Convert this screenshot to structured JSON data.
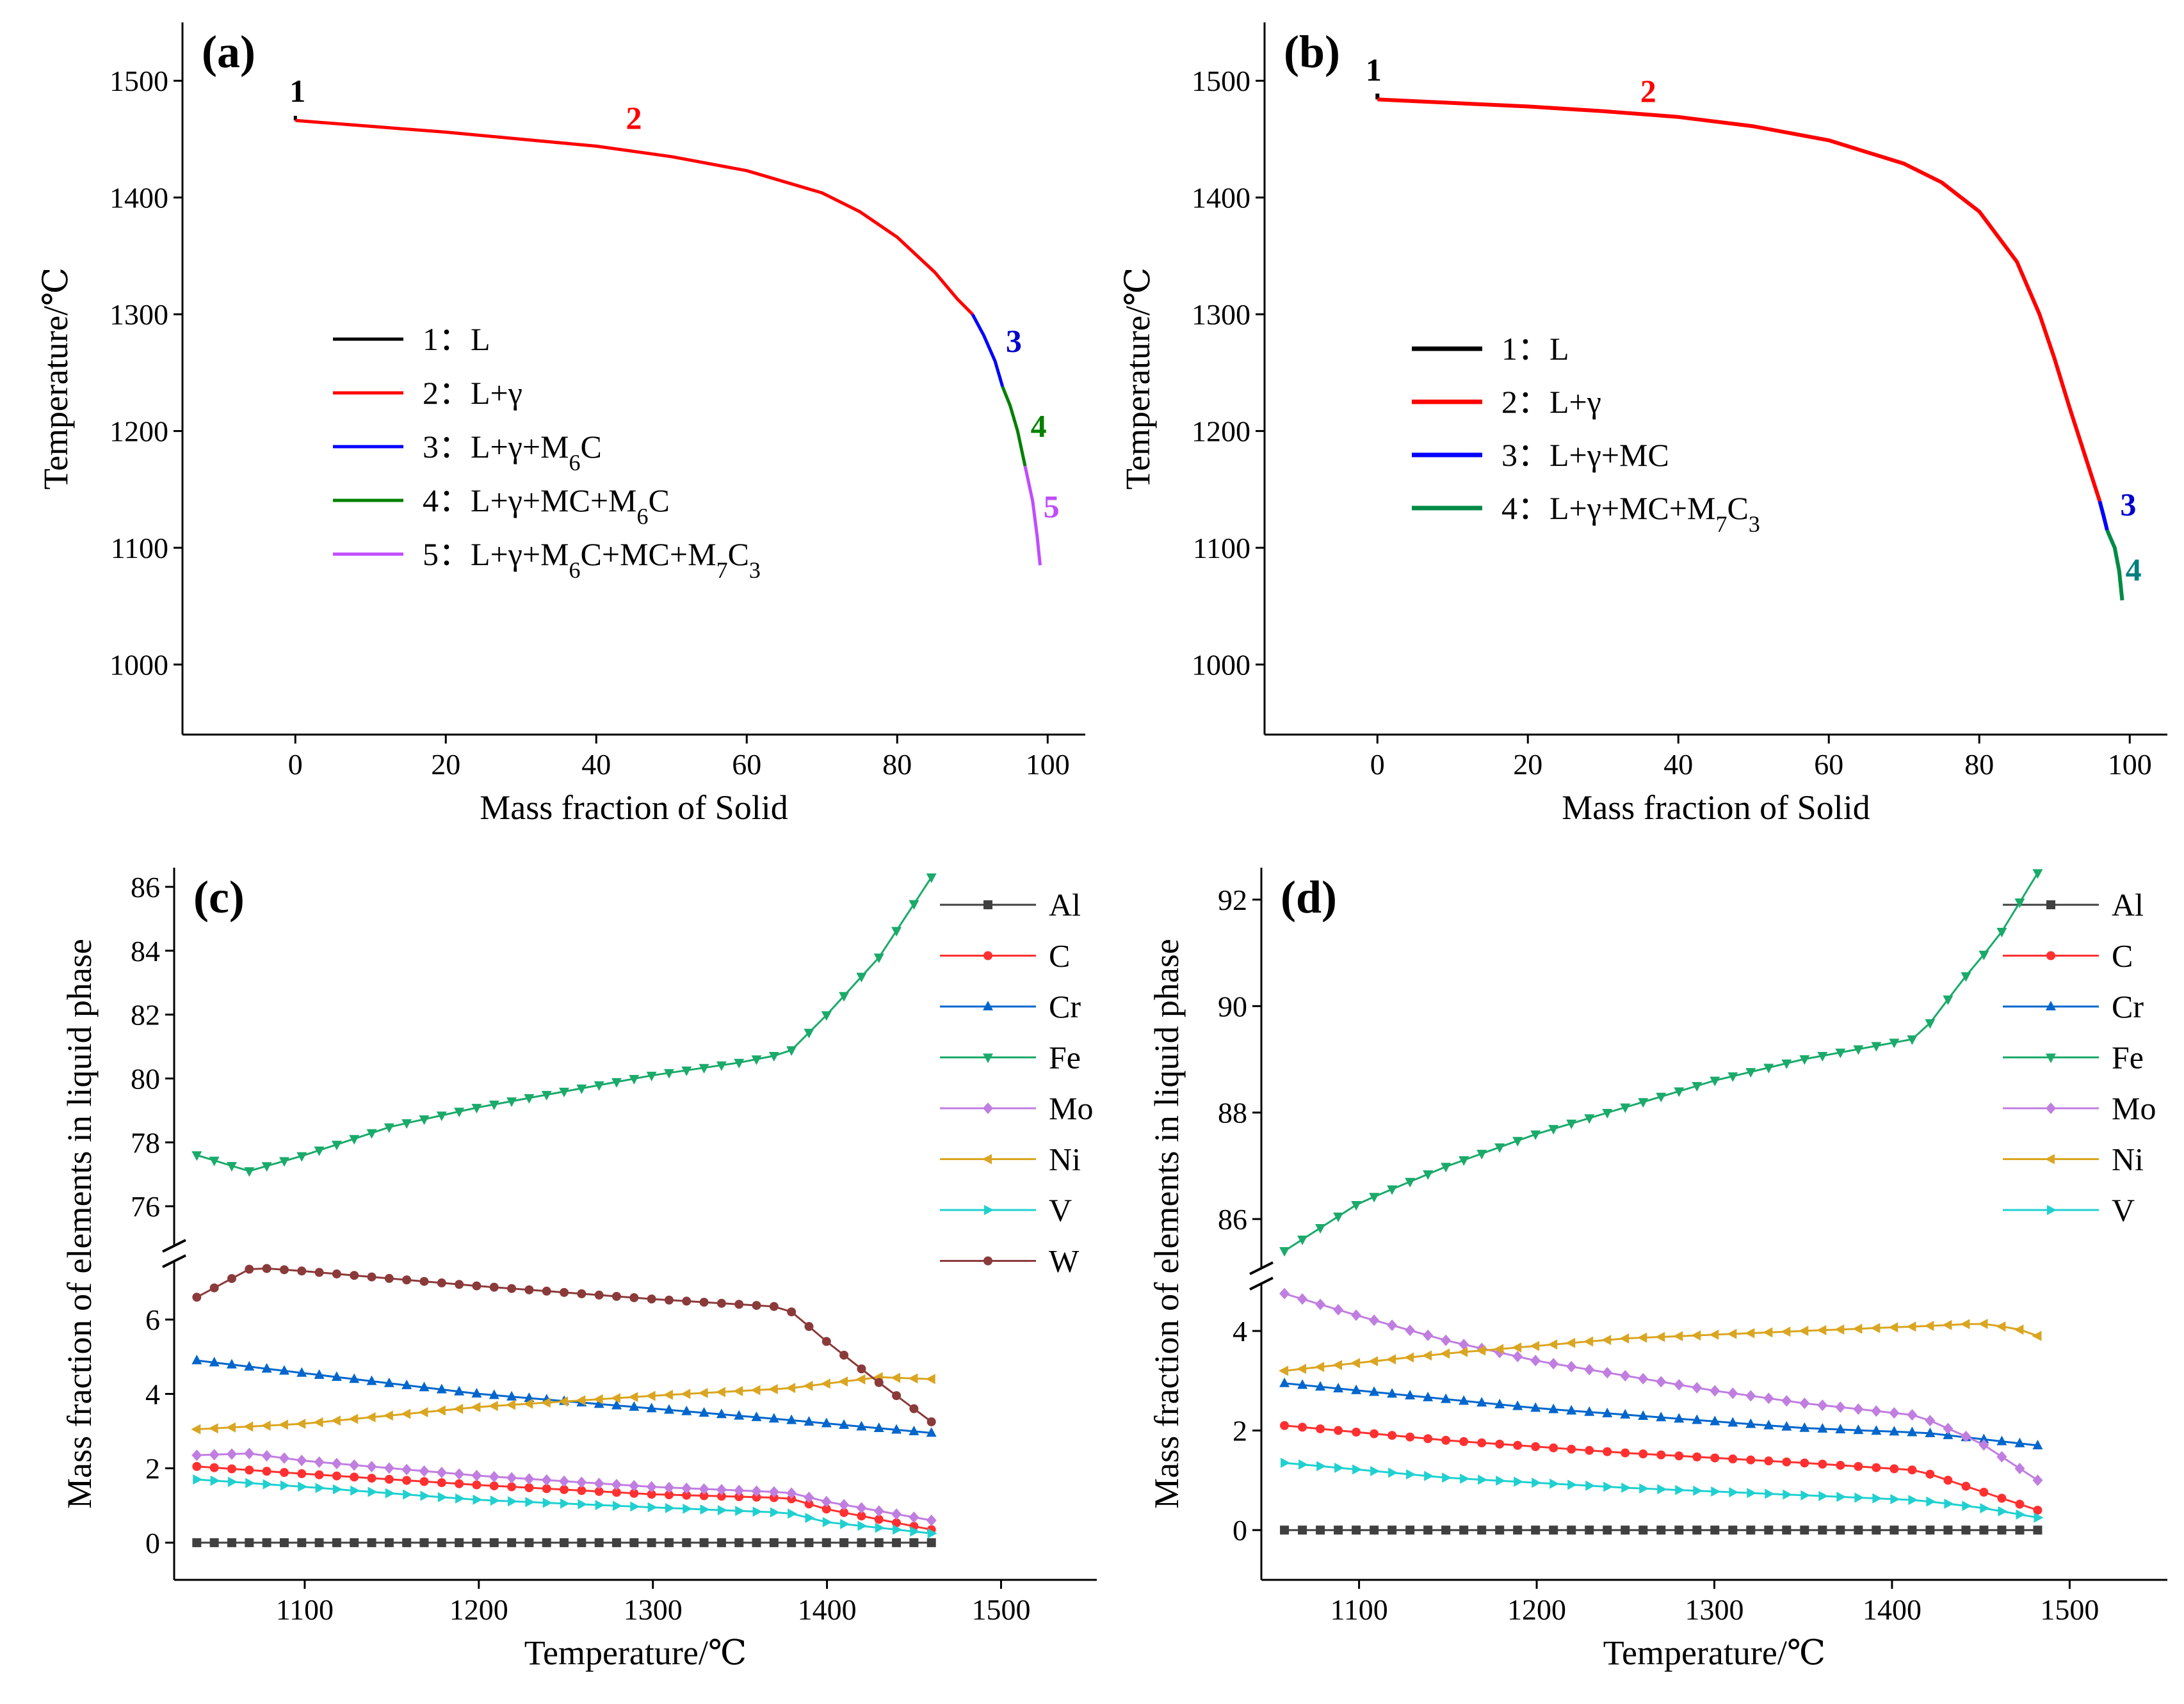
{
  "chart_data": [
    {
      "panel": "(a)",
      "type": "line",
      "xlabel": "Mass fraction of Solid",
      "ylabel": "Temperature/℃",
      "xlim": [
        -15,
        105
      ],
      "ylim": [
        940,
        1550
      ],
      "xticks": [
        0,
        20,
        40,
        60,
        80,
        100
      ],
      "yticks": [
        1000,
        1100,
        1200,
        1300,
        1400,
        1500
      ],
      "legend_position": "center-left",
      "series": [
        {
          "name": "1",
          "legend": "1：L",
          "color": "#000000",
          "points": [
            [
              0,
              1466
            ],
            [
              0,
              1470
            ]
          ]
        },
        {
          "name": "2",
          "legend": "2：L+γ",
          "color": "#ff0000",
          "points": [
            [
              0,
              1466
            ],
            [
              10,
              1461
            ],
            [
              20,
              1456
            ],
            [
              30,
              1450
            ],
            [
              40,
              1444
            ],
            [
              50,
              1435
            ],
            [
              60,
              1423
            ],
            [
              70,
              1404
            ],
            [
              75,
              1388
            ],
            [
              80,
              1366
            ],
            [
              85,
              1336
            ],
            [
              88,
              1313
            ],
            [
              90,
              1300
            ]
          ]
        },
        {
          "name": "3",
          "legend": "3：L+γ+M6C",
          "color": "#0000ff",
          "points": [
            [
              90,
              1300
            ],
            [
              91.5,
              1282
            ],
            [
              93,
              1260
            ],
            [
              94,
              1238
            ]
          ]
        },
        {
          "name": "4",
          "legend": "4：L+γ+MC+M6C",
          "color": "#008000",
          "points": [
            [
              94,
              1238
            ],
            [
              95,
              1222
            ],
            [
              96,
              1200
            ],
            [
              97,
              1170
            ]
          ]
        },
        {
          "name": "5",
          "legend": "5：L+γ+M6C+MC+M7C3",
          "color": "#c04cff",
          "points": [
            [
              97,
              1170
            ],
            [
              98,
              1140
            ],
            [
              98.6,
              1110
            ],
            [
              99,
              1085
            ]
          ]
        }
      ],
      "region_labels": [
        {
          "text": "1",
          "x": 0.3,
          "y": 1482,
          "color": "#000000"
        },
        {
          "text": "2",
          "x": 45,
          "y": 1459,
          "color": "#ff0000"
        },
        {
          "text": "3",
          "x": 95.5,
          "y": 1268,
          "color": "#0000cc"
        },
        {
          "text": "4",
          "x": 98.8,
          "y": 1195,
          "color": "#008000"
        },
        {
          "text": "5",
          "x": 100.5,
          "y": 1126,
          "color": "#c04cff"
        }
      ]
    },
    {
      "panel": "(b)",
      "type": "line",
      "xlabel": "Mass fraction of Solid",
      "ylabel": "Temperature/℃",
      "xlim": [
        -15,
        105
      ],
      "ylim": [
        940,
        1550
      ],
      "xticks": [
        0,
        20,
        40,
        60,
        80,
        100
      ],
      "yticks": [
        1000,
        1100,
        1200,
        1300,
        1400,
        1500
      ],
      "legend_position": "center-left",
      "series": [
        {
          "name": "1",
          "legend": "1：L",
          "color": "#000000",
          "points": [
            [
              0,
              1484
            ],
            [
              0,
              1489
            ]
          ]
        },
        {
          "name": "2",
          "legend": "2：L+γ",
          "color": "#ff0000",
          "points": [
            [
              0,
              1484
            ],
            [
              10,
              1481
            ],
            [
              20,
              1478
            ],
            [
              30,
              1474
            ],
            [
              40,
              1469
            ],
            [
              50,
              1461
            ],
            [
              60,
              1449
            ],
            [
              70,
              1429
            ],
            [
              75,
              1413
            ],
            [
              80,
              1388
            ],
            [
              85,
              1345
            ],
            [
              88,
              1300
            ],
            [
              90,
              1262
            ],
            [
              92,
              1220
            ],
            [
              94,
              1180
            ],
            [
              96,
              1140
            ]
          ]
        },
        {
          "name": "3",
          "legend": "3：L+γ+MC",
          "color": "#0000ff",
          "points": [
            [
              96,
              1140
            ],
            [
              96.5,
              1128
            ],
            [
              97,
              1115
            ]
          ]
        },
        {
          "name": "4",
          "legend": "4：L+γ+MC+M7C3",
          "color": "#008b45",
          "points": [
            [
              97,
              1115
            ],
            [
              98,
              1100
            ],
            [
              98.6,
              1080
            ],
            [
              99,
              1055
            ]
          ]
        }
      ],
      "region_labels": [
        {
          "text": "1",
          "x": -0.5,
          "y": 1500,
          "color": "#000000"
        },
        {
          "text": "2",
          "x": 36,
          "y": 1482,
          "color": "#ff0000"
        },
        {
          "text": "3",
          "x": 99.8,
          "y": 1128,
          "color": "#0000cc"
        },
        {
          "text": "4",
          "x": 100.5,
          "y": 1072,
          "color": "#008080"
        }
      ]
    },
    {
      "panel": "(c)",
      "type": "line",
      "xlabel": "Temperature/℃",
      "ylabel": "Mass fraction of elements in liquid phase",
      "xlim": [
        1025,
        1555
      ],
      "xticks": [
        1100,
        1200,
        1300,
        1400,
        1500
      ],
      "ylim_lower": [
        -1,
        7.5
      ],
      "ylim_upper": [
        74.8,
        86.6
      ],
      "yticks_lower": [
        0,
        2,
        4,
        6
      ],
      "yticks_upper": [
        76,
        78,
        80,
        82,
        84,
        86
      ],
      "legend_position": "right",
      "series": [
        {
          "name": "Al",
          "color": "#404040",
          "marker": "square",
          "x_range": [
            1038,
            1460
          ],
          "anchors": [
            [
              1038,
              0
            ],
            [
              1460,
              0
            ]
          ]
        },
        {
          "name": "C",
          "color": "#ff3030",
          "marker": "circle",
          "x_range": [
            1038,
            1460
          ],
          "anchors": [
            [
              1038,
              2.05
            ],
            [
              1100,
              1.85
            ],
            [
              1200,
              1.55
            ],
            [
              1300,
              1.3
            ],
            [
              1378,
              1.2
            ],
            [
              1400,
              0.9
            ],
            [
              1460,
              0.35
            ]
          ]
        },
        {
          "name": "Cr",
          "color": "#0066cc",
          "marker": "triangle-up",
          "x_range": [
            1038,
            1460
          ],
          "anchors": [
            [
              1038,
              4.9
            ],
            [
              1200,
              4.0
            ],
            [
              1378,
              3.3
            ],
            [
              1460,
              2.95
            ]
          ]
        },
        {
          "name": "Fe",
          "color": "#1aaa6a",
          "marker": "triangle-down",
          "x_range": [
            1038,
            1460
          ],
          "anchors": [
            [
              1038,
              77.6
            ],
            [
              1068,
              77.1
            ],
            [
              1100,
              77.6
            ],
            [
              1150,
              78.5
            ],
            [
              1200,
              79.1
            ],
            [
              1250,
              79.6
            ],
            [
              1300,
              80.1
            ],
            [
              1350,
              80.5
            ],
            [
              1378,
              80.8
            ],
            [
              1400,
              82.0
            ],
            [
              1430,
              83.8
            ],
            [
              1460,
              86.3
            ]
          ]
        },
        {
          "name": "Mo",
          "color": "#c07ee0",
          "marker": "diamond",
          "x_range": [
            1038,
            1460
          ],
          "anchors": [
            [
              1038,
              2.35
            ],
            [
              1068,
              2.4
            ],
            [
              1100,
              2.2
            ],
            [
              1200,
              1.8
            ],
            [
              1300,
              1.5
            ],
            [
              1378,
              1.35
            ],
            [
              1400,
              1.1
            ],
            [
              1460,
              0.6
            ]
          ]
        },
        {
          "name": "Ni",
          "color": "#daa520",
          "marker": "triangle-left",
          "x_range": [
            1038,
            1460
          ],
          "anchors": [
            [
              1038,
              3.05
            ],
            [
              1100,
              3.2
            ],
            [
              1200,
              3.65
            ],
            [
              1300,
              3.95
            ],
            [
              1378,
              4.15
            ],
            [
              1430,
              4.45
            ],
            [
              1460,
              4.4
            ]
          ]
        },
        {
          "name": "V",
          "color": "#20d0d0",
          "marker": "triangle-right",
          "x_range": [
            1038,
            1460
          ],
          "anchors": [
            [
              1038,
              1.7
            ],
            [
              1100,
              1.5
            ],
            [
              1200,
              1.15
            ],
            [
              1300,
              0.95
            ],
            [
              1378,
              0.8
            ],
            [
              1400,
              0.55
            ],
            [
              1460,
              0.25
            ]
          ]
        },
        {
          "name": "W",
          "color": "#8b3a3a",
          "marker": "circle",
          "x_range": [
            1038,
            1460
          ],
          "anchors": [
            [
              1038,
              6.6
            ],
            [
              1050,
              6.9
            ],
            [
              1070,
              7.4
            ],
            [
              1100,
              7.3
            ],
            [
              1200,
              6.9
            ],
            [
              1300,
              6.55
            ],
            [
              1370,
              6.35
            ],
            [
              1380,
              6.2
            ],
            [
              1400,
              5.4
            ],
            [
              1430,
              4.3
            ],
            [
              1460,
              3.25
            ]
          ]
        }
      ]
    },
    {
      "panel": "(d)",
      "type": "line",
      "xlabel": "Temperature/℃",
      "ylabel": "Mass fraction of elements in liquid phase",
      "xlim": [
        1045,
        1555
      ],
      "xticks": [
        1100,
        1200,
        1300,
        1400,
        1500
      ],
      "ylim_lower": [
        -1,
        4.9
      ],
      "ylim_upper": [
        85.1,
        92.6
      ],
      "yticks_lower": [
        0,
        2,
        4
      ],
      "yticks_upper": [
        86,
        88,
        90,
        92
      ],
      "legend_position": "right",
      "series": [
        {
          "name": "Al",
          "color": "#404040",
          "marker": "square",
          "x_range": [
            1058,
            1482
          ],
          "anchors": [
            [
              1058,
              0
            ],
            [
              1482,
              0
            ]
          ]
        },
        {
          "name": "C",
          "color": "#ff3030",
          "marker": "circle",
          "x_range": [
            1058,
            1482
          ],
          "anchors": [
            [
              1058,
              2.1
            ],
            [
              1150,
              1.8
            ],
            [
              1250,
              1.55
            ],
            [
              1350,
              1.35
            ],
            [
              1415,
              1.2
            ],
            [
              1440,
              0.9
            ],
            [
              1482,
              0.4
            ]
          ]
        },
        {
          "name": "Cr",
          "color": "#0066cc",
          "marker": "triangle-up",
          "x_range": [
            1058,
            1482
          ],
          "anchors": [
            [
              1058,
              2.95
            ],
            [
              1200,
              2.45
            ],
            [
              1350,
              2.05
            ],
            [
              1420,
              1.95
            ],
            [
              1482,
              1.7
            ]
          ]
        },
        {
          "name": "Fe",
          "color": "#1aaa6a",
          "marker": "triangle-down",
          "x_range": [
            1058,
            1482
          ],
          "anchors": [
            [
              1058,
              85.4
            ],
            [
              1100,
              86.3
            ],
            [
              1150,
              87.0
            ],
            [
              1200,
              87.6
            ],
            [
              1250,
              88.1
            ],
            [
              1300,
              88.6
            ],
            [
              1350,
              89.0
            ],
            [
              1415,
              89.4
            ],
            [
              1440,
              90.5
            ],
            [
              1460,
              91.3
            ],
            [
              1482,
              92.5
            ]
          ]
        },
        {
          "name": "Mo",
          "color": "#c07ee0",
          "marker": "diamond",
          "x_range": [
            1058,
            1482
          ],
          "anchors": [
            [
              1058,
              4.75
            ],
            [
              1100,
              4.3
            ],
            [
              1150,
              3.8
            ],
            [
              1200,
              3.4
            ],
            [
              1250,
              3.1
            ],
            [
              1300,
              2.8
            ],
            [
              1350,
              2.55
            ],
            [
              1415,
              2.3
            ],
            [
              1450,
              1.75
            ],
            [
              1482,
              1.0
            ]
          ]
        },
        {
          "name": "Ni",
          "color": "#daa520",
          "marker": "triangle-left",
          "x_range": [
            1058,
            1482
          ],
          "anchors": [
            [
              1058,
              3.2
            ],
            [
              1150,
              3.55
            ],
            [
              1250,
              3.85
            ],
            [
              1350,
              4.0
            ],
            [
              1420,
              4.1
            ],
            [
              1450,
              4.15
            ],
            [
              1470,
              4.05
            ],
            [
              1482,
              3.9
            ]
          ]
        },
        {
          "name": "V",
          "color": "#20d0d0",
          "marker": "triangle-right",
          "x_range": [
            1058,
            1482
          ],
          "anchors": [
            [
              1058,
              1.35
            ],
            [
              1150,
              1.05
            ],
            [
              1250,
              0.85
            ],
            [
              1350,
              0.7
            ],
            [
              1415,
              0.6
            ],
            [
              1450,
              0.45
            ],
            [
              1482,
              0.25
            ]
          ]
        }
      ]
    }
  ]
}
